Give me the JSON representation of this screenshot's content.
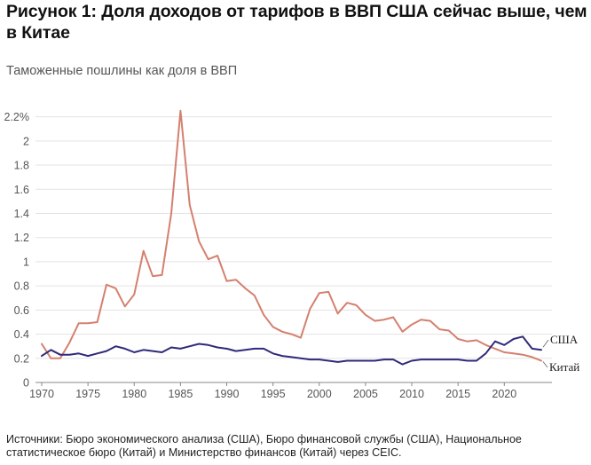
{
  "title": "Рисунок 1: Доля доходов от тарифов в ВВП США сейчас выше, чем в Китае",
  "subtitle": "Таможенные пошлины как доля в ВВП",
  "source": "Источники: Бюро экономического анализа (США), Бюро финансовой службы (США), Национальное статистическое бюро (Китай) и Министерство финансов (Китай) через CEIC.",
  "chart_data": {
    "type": "line",
    "x": [
      1970,
      1971,
      1972,
      1973,
      1974,
      1975,
      1976,
      1977,
      1978,
      1979,
      1980,
      1981,
      1982,
      1983,
      1984,
      1985,
      1986,
      1987,
      1988,
      1989,
      1990,
      1991,
      1992,
      1993,
      1994,
      1995,
      1996,
      1997,
      1998,
      1999,
      2000,
      2001,
      2002,
      2003,
      2004,
      2005,
      2006,
      2007,
      2008,
      2009,
      2010,
      2011,
      2012,
      2013,
      2014,
      2015,
      2016,
      2017,
      2018,
      2019,
      2020,
      2021,
      2022,
      2023,
      2024
    ],
    "ylim": [
      0,
      2.3
    ],
    "yticks": [
      0,
      0.2,
      0.4,
      0.6,
      0.8,
      1,
      1.2,
      1.4,
      1.6,
      1.8,
      2,
      2.2
    ],
    "ytick_labels": [
      "0",
      "0.2",
      "0.4",
      "0.6",
      "0.8",
      "1",
      "1.2",
      "1.4",
      "1.6",
      "1.8",
      "2",
      "2.2%"
    ],
    "xticks": [
      1970,
      1975,
      1980,
      1985,
      1990,
      1995,
      2000,
      2005,
      2010,
      2015,
      2020
    ],
    "grid": true,
    "series": [
      {
        "name": "Китай",
        "color": "#d4806e",
        "values": [
          0.32,
          0.2,
          0.2,
          0.33,
          0.49,
          0.49,
          0.5,
          0.81,
          0.78,
          0.63,
          0.73,
          1.09,
          0.88,
          0.89,
          1.4,
          2.25,
          1.47,
          1.17,
          1.02,
          1.05,
          0.84,
          0.85,
          0.78,
          0.72,
          0.56,
          0.46,
          0.42,
          0.4,
          0.37,
          0.61,
          0.74,
          0.75,
          0.57,
          0.66,
          0.64,
          0.56,
          0.51,
          0.52,
          0.54,
          0.42,
          0.48,
          0.52,
          0.51,
          0.44,
          0.43,
          0.36,
          0.34,
          0.35,
          0.31,
          0.28,
          0.25,
          0.24,
          0.23,
          0.21,
          0.18
        ]
      },
      {
        "name": "США",
        "color": "#2e2a7a",
        "values": [
          0.22,
          0.27,
          0.23,
          0.23,
          0.24,
          0.22,
          0.24,
          0.26,
          0.3,
          0.28,
          0.25,
          0.27,
          0.26,
          0.25,
          0.29,
          0.28,
          0.3,
          0.32,
          0.31,
          0.29,
          0.28,
          0.26,
          0.27,
          0.28,
          0.28,
          0.24,
          0.22,
          0.21,
          0.2,
          0.19,
          0.19,
          0.18,
          0.17,
          0.18,
          0.18,
          0.18,
          0.18,
          0.19,
          0.19,
          0.15,
          0.18,
          0.19,
          0.19,
          0.19,
          0.19,
          0.19,
          0.18,
          0.18,
          0.24,
          0.34,
          0.31,
          0.36,
          0.38,
          0.28,
          0.27
        ]
      }
    ]
  }
}
